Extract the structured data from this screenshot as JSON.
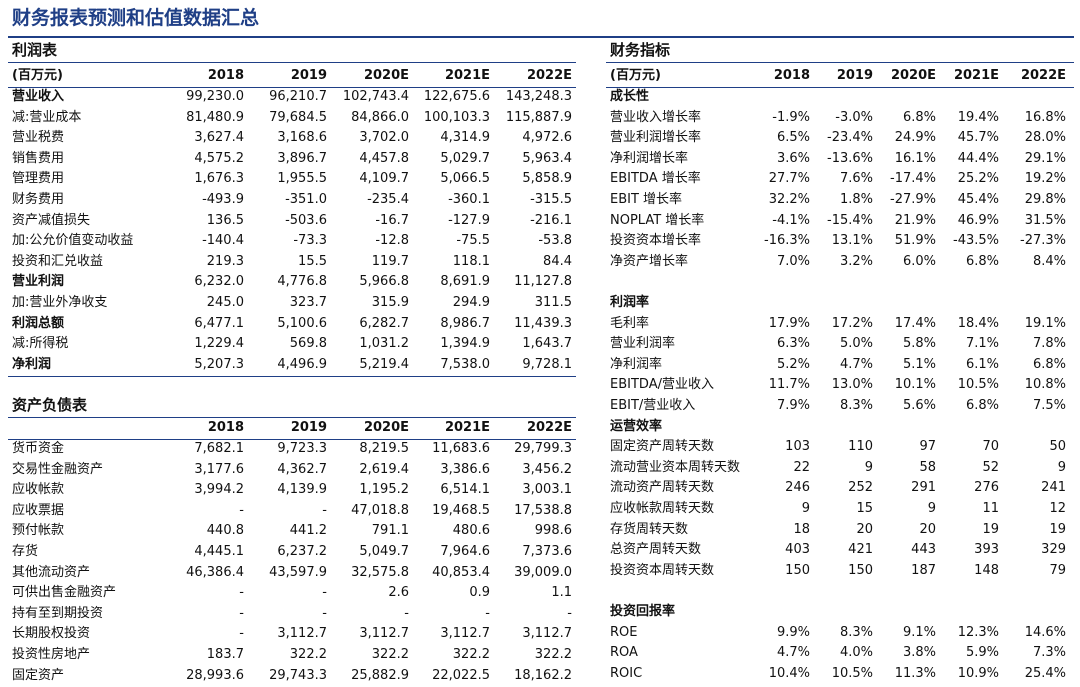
{
  "title": "财务报表预测和估值数据汇总",
  "income": {
    "title": "利润表",
    "header": [
      "(百万元)",
      "2018",
      "2019",
      "2020E",
      "2021E",
      "2022E"
    ],
    "rows": [
      {
        "label": "营业收入",
        "bold": true,
        "cells": [
          "99,230.0",
          "96,210.7",
          "102,743.4",
          "122,675.6",
          "143,248.3"
        ]
      },
      {
        "label": "减:营业成本",
        "cells": [
          "81,480.9",
          "79,684.5",
          "84,866.0",
          "100,103.3",
          "115,887.9"
        ]
      },
      {
        "label": "营业税费",
        "cells": [
          "3,627.4",
          "3,168.6",
          "3,702.0",
          "4,314.9",
          "4,972.6"
        ]
      },
      {
        "label": "销售费用",
        "cells": [
          "4,575.2",
          "3,896.7",
          "4,457.8",
          "5,029.7",
          "5,963.4"
        ]
      },
      {
        "label": "管理费用",
        "cells": [
          "1,676.3",
          "1,955.5",
          "4,109.7",
          "5,066.5",
          "5,858.9"
        ]
      },
      {
        "label": "财务费用",
        "cells": [
          "-493.9",
          "-351.0",
          "-235.4",
          "-360.1",
          "-315.5"
        ]
      },
      {
        "label": "资产减值损失",
        "cells": [
          "136.5",
          "-503.6",
          "-16.7",
          "-127.9",
          "-216.1"
        ]
      },
      {
        "label": "加:公允价值变动收益",
        "cells": [
          "-140.4",
          "-73.3",
          "-12.8",
          "-75.5",
          "-53.8"
        ]
      },
      {
        "label": "投资和汇兑收益",
        "cells": [
          "219.3",
          "15.5",
          "119.7",
          "118.1",
          "84.4"
        ]
      },
      {
        "label": "营业利润",
        "bold": true,
        "cells": [
          "6,232.0",
          "4,776.8",
          "5,966.8",
          "8,691.9",
          "11,127.8"
        ]
      },
      {
        "label": "加:营业外净收支",
        "cells": [
          "245.0",
          "323.7",
          "315.9",
          "294.9",
          "311.5"
        ]
      },
      {
        "label": "利润总额",
        "bold": true,
        "cells": [
          "6,477.1",
          "5,100.6",
          "6,282.7",
          "8,986.7",
          "11,439.3"
        ]
      },
      {
        "label": "减:所得税",
        "cells": [
          "1,229.4",
          "569.8",
          "1,031.2",
          "1,394.9",
          "1,643.7"
        ]
      },
      {
        "label": "净利润",
        "bold": true,
        "cells": [
          "5,207.3",
          "4,496.9",
          "5,219.4",
          "7,538.0",
          "9,728.1"
        ]
      }
    ]
  },
  "balance": {
    "title": "资产负债表",
    "header": [
      "2018",
      "2019",
      "2020E",
      "2021E",
      "2022E"
    ],
    "rows": [
      {
        "label": "货币资金",
        "cells": [
          "7,682.1",
          "9,723.3",
          "8,219.5",
          "11,683.6",
          "29,799.3"
        ]
      },
      {
        "label": "交易性金融资产",
        "cells": [
          "3,177.6",
          "4,362.7",
          "2,619.4",
          "3,386.6",
          "3,456.2"
        ]
      },
      {
        "label": "应收帐款",
        "cells": [
          "3,994.2",
          "4,139.9",
          "1,195.2",
          "6,514.1",
          "3,003.1"
        ]
      },
      {
        "label": "应收票据",
        "cells": [
          "-",
          "-",
          "47,018.8",
          "19,468.5",
          "17,538.8"
        ]
      },
      {
        "label": "预付帐款",
        "cells": [
          "440.8",
          "441.2",
          "791.1",
          "480.6",
          "998.6"
        ]
      },
      {
        "label": "存货",
        "cells": [
          "4,445.1",
          "6,237.2",
          "5,049.7",
          "7,964.6",
          "7,373.6"
        ]
      },
      {
        "label": "其他流动资产",
        "cells": [
          "46,386.4",
          "43,597.9",
          "32,575.8",
          "40,853.4",
          "39,009.0"
        ]
      },
      {
        "label": "可供出售金融资产",
        "cells": [
          "-",
          "-",
          "2.6",
          "0.9",
          "1.1"
        ]
      },
      {
        "label": "持有至到期投资",
        "cells": [
          "-",
          "-",
          "-",
          "-",
          "-"
        ]
      },
      {
        "label": "长期股权投资",
        "cells": [
          "-",
          "3,112.7",
          "3,112.7",
          "3,112.7",
          "3,112.7"
        ]
      },
      {
        "label": "投资性房地产",
        "cells": [
          "183.7",
          "322.2",
          "322.2",
          "322.2",
          "322.2"
        ]
      },
      {
        "label": "固定资产",
        "cells": [
          "28,993.6",
          "29,743.3",
          "25,882.9",
          "22,022.5",
          "18,162.2"
        ]
      }
    ]
  },
  "ratios": {
    "title": "财务指标",
    "header": [
      "(百万元)",
      "2018",
      "2019",
      "2020E",
      "2021E",
      "2022E"
    ],
    "rows": [
      {
        "heading": "成长性"
      },
      {
        "label": "营业收入增长率",
        "cells": [
          "-1.9%",
          "-3.0%",
          "6.8%",
          "19.4%",
          "16.8%"
        ]
      },
      {
        "label": "营业利润增长率",
        "cells": [
          "6.5%",
          "-23.4%",
          "24.9%",
          "45.7%",
          "28.0%"
        ]
      },
      {
        "label": "净利润增长率",
        "cells": [
          "3.6%",
          "-13.6%",
          "16.1%",
          "44.4%",
          "29.1%"
        ]
      },
      {
        "label": "EBITDA 增长率",
        "cells": [
          "27.7%",
          "7.6%",
          "-17.4%",
          "25.2%",
          "19.2%"
        ]
      },
      {
        "label": "EBIT 增长率",
        "cells": [
          "32.2%",
          "1.8%",
          "-27.9%",
          "45.4%",
          "29.8%"
        ]
      },
      {
        "label": "NOPLAT 增长率",
        "cells": [
          "-4.1%",
          "-15.4%",
          "21.9%",
          "46.9%",
          "31.5%"
        ]
      },
      {
        "label": "投资资本增长率",
        "cells": [
          "-16.3%",
          "13.1%",
          "51.9%",
          "-43.5%",
          "-27.3%"
        ]
      },
      {
        "label": "净资产增长率",
        "cells": [
          "7.0%",
          "3.2%",
          "6.0%",
          "6.8%",
          "8.4%"
        ]
      },
      {
        "heading": "利润率"
      },
      {
        "label": "毛利率",
        "cells": [
          "17.9%",
          "17.2%",
          "17.4%",
          "18.4%",
          "19.1%"
        ]
      },
      {
        "label": "营业利润率",
        "cells": [
          "6.3%",
          "5.0%",
          "5.8%",
          "7.1%",
          "7.8%"
        ]
      },
      {
        "label": "净利润率",
        "cells": [
          "5.2%",
          "4.7%",
          "5.1%",
          "6.1%",
          "6.8%"
        ]
      },
      {
        "label": "EBITDA/营业收入",
        "cells": [
          "11.7%",
          "13.0%",
          "10.1%",
          "10.5%",
          "10.8%"
        ]
      },
      {
        "label": "EBIT/营业收入",
        "cells": [
          "7.9%",
          "8.3%",
          "5.6%",
          "6.8%",
          "7.5%"
        ]
      },
      {
        "heading": "运营效率"
      },
      {
        "label": "固定资产周转天数",
        "cells": [
          "103",
          "110",
          "97",
          "70",
          "50"
        ]
      },
      {
        "label": "流动营业资本周转天数",
        "cells": [
          "22",
          "9",
          "58",
          "52",
          "9"
        ]
      },
      {
        "label": "流动资产周转天数",
        "cells": [
          "246",
          "252",
          "291",
          "276",
          "241"
        ]
      },
      {
        "label": "应收帐款周转天数",
        "cells": [
          "9",
          "15",
          "9",
          "11",
          "12"
        ]
      },
      {
        "label": "存货周转天数",
        "cells": [
          "18",
          "20",
          "20",
          "19",
          "19"
        ]
      },
      {
        "label": "总资产周转天数",
        "cells": [
          "403",
          "421",
          "443",
          "393",
          "329"
        ]
      },
      {
        "label": "投资资本周转天数",
        "cells": [
          "150",
          "150",
          "187",
          "148",
          "79"
        ]
      },
      {
        "heading": "投资回报率"
      },
      {
        "label": "ROE",
        "cells": [
          "9.9%",
          "8.3%",
          "9.1%",
          "12.3%",
          "14.6%"
        ]
      },
      {
        "label": "ROA",
        "cells": [
          "4.7%",
          "4.0%",
          "3.8%",
          "5.9%",
          "7.3%"
        ]
      },
      {
        "label": "ROIC",
        "cells": [
          "10.4%",
          "10.5%",
          "11.3%",
          "10.9%",
          "25.4%"
        ]
      }
    ]
  }
}
